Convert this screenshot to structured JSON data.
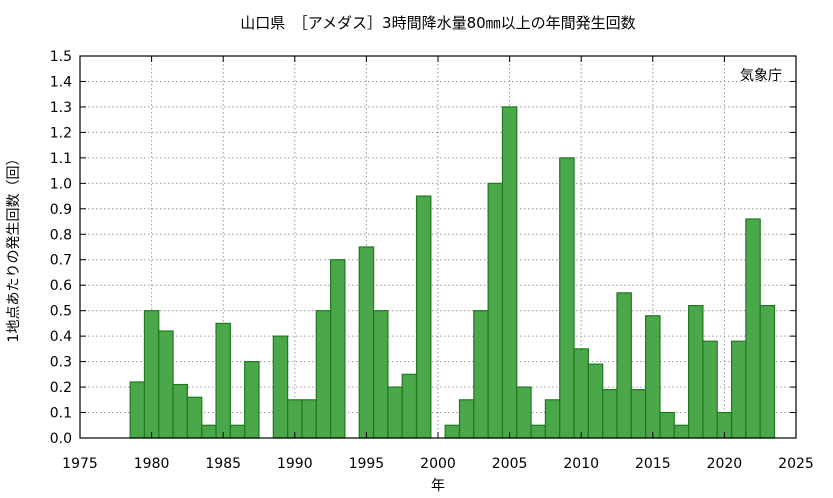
{
  "chart_data": {
    "type": "bar",
    "title": "山口県　［アメダス］3時間降水量80㎜以上の年間発生回数",
    "xlabel": "年",
    "ylabel": "1地点あたりの発生回数（回）",
    "source_note": "気象庁",
    "x_ticks": [
      "1975",
      "1980",
      "1985",
      "1990",
      "1995",
      "2000",
      "2005",
      "2010",
      "2015",
      "2020",
      "2025"
    ],
    "y_ticks": [
      "0.0",
      "0.1",
      "0.2",
      "0.3",
      "0.4",
      "0.5",
      "0.6",
      "0.7",
      "0.8",
      "0.9",
      "1.0",
      "1.1",
      "1.2",
      "1.3",
      "1.4",
      "1.5"
    ],
    "xlim": [
      1975,
      2025
    ],
    "ylim": [
      0,
      1.5
    ],
    "grid": true,
    "bar_color": "#4aa84a",
    "bar_edge_color": "#1f7a1f",
    "series": [
      {
        "x": [
          1979,
          1980,
          1981,
          1982,
          1983,
          1984,
          1985,
          1986,
          1987,
          1988,
          1989,
          1990,
          1991,
          1992,
          1993,
          1994,
          1995,
          1996,
          1997,
          1998,
          1999,
          2000,
          2001,
          2002,
          2003,
          2004,
          2005,
          2006,
          2007,
          2008,
          2009,
          2010,
          2011,
          2012,
          2013,
          2014,
          2015,
          2016,
          2017,
          2018,
          2019,
          2020,
          2021,
          2022,
          2023
        ],
        "values": [
          0.22,
          0.5,
          0.42,
          0.21,
          0.16,
          0.05,
          0.45,
          0.05,
          0.3,
          0.0,
          0.4,
          0.15,
          0.15,
          0.5,
          0.7,
          0.0,
          0.75,
          0.5,
          0.2,
          0.25,
          0.95,
          0.0,
          0.05,
          0.15,
          0.5,
          1.0,
          1.3,
          0.2,
          0.05,
          0.15,
          1.1,
          0.35,
          0.29,
          0.19,
          0.57,
          0.19,
          0.48,
          0.1,
          0.05,
          0.52,
          0.38,
          0.1,
          0.38,
          0.86,
          0.52
        ]
      }
    ]
  }
}
